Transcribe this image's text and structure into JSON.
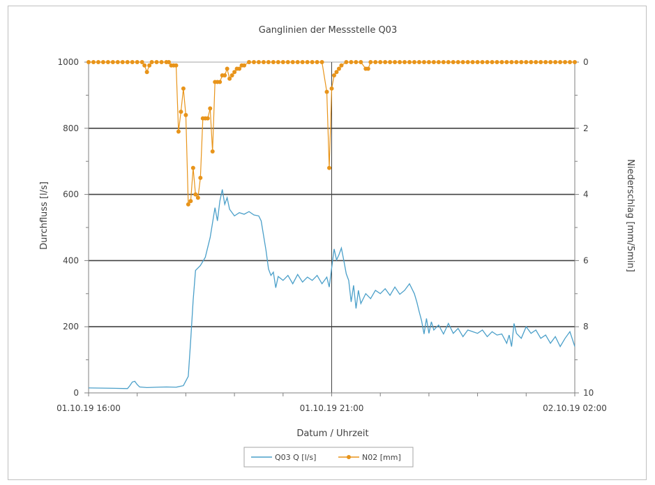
{
  "chart_data": {
    "type": "line",
    "title": "Ganglinien der Messstelle Q03",
    "xlabel": "Datum / Uhrzeit",
    "ylabel_left": "Durchfluss  [l/s]",
    "ylabel_right": "Niederschlag  [mm/5min]",
    "x_axis": {
      "type": "time",
      "range": [
        "01.10.19 16:00",
        "02.10.19 02:00"
      ],
      "tick_labels": [
        "01.10.19 16:00",
        "01.10.19 21:00",
        "02.10.19 02:00"
      ]
    },
    "y_left": {
      "range": [
        0,
        1000
      ],
      "ticks": [
        0,
        200,
        400,
        600,
        800,
        1000
      ]
    },
    "y_right": {
      "range": [
        0,
        10
      ],
      "inverted": true,
      "ticks": [
        0,
        2,
        4,
        6,
        8,
        10
      ]
    },
    "grid": "horizontal major lines at 200, 400, 600, 800, 1000 l/s",
    "vertical_marker_at": "01.10.19 21:00",
    "legend_position": "bottom",
    "series": [
      {
        "name": "Q03 Q [l/s]",
        "axis": "left",
        "color": "#4a9fc9",
        "x_unit": "hours since 01.10.19 16:00",
        "points": [
          [
            0.0,
            15
          ],
          [
            0.5,
            14
          ],
          [
            0.8,
            13
          ],
          [
            0.85,
            22
          ],
          [
            0.9,
            33
          ],
          [
            0.95,
            35
          ],
          [
            1.0,
            25
          ],
          [
            1.05,
            18
          ],
          [
            1.2,
            16
          ],
          [
            1.4,
            17
          ],
          [
            1.6,
            18
          ],
          [
            1.8,
            17
          ],
          [
            1.95,
            22
          ],
          [
            2.05,
            50
          ],
          [
            2.1,
            160
          ],
          [
            2.15,
            280
          ],
          [
            2.2,
            370
          ],
          [
            2.3,
            385
          ],
          [
            2.4,
            410
          ],
          [
            2.5,
            470
          ],
          [
            2.6,
            560
          ],
          [
            2.65,
            520
          ],
          [
            2.7,
            580
          ],
          [
            2.75,
            615
          ],
          [
            2.8,
            570
          ],
          [
            2.85,
            590
          ],
          [
            2.9,
            555
          ],
          [
            3.0,
            535
          ],
          [
            3.1,
            545
          ],
          [
            3.2,
            540
          ],
          [
            3.3,
            548
          ],
          [
            3.4,
            538
          ],
          [
            3.5,
            535
          ],
          [
            3.55,
            520
          ],
          [
            3.6,
            475
          ],
          [
            3.65,
            430
          ],
          [
            3.7,
            375
          ],
          [
            3.75,
            355
          ],
          [
            3.8,
            365
          ],
          [
            3.85,
            318
          ],
          [
            3.9,
            352
          ],
          [
            4.0,
            340
          ],
          [
            4.1,
            355
          ],
          [
            4.2,
            330
          ],
          [
            4.3,
            358
          ],
          [
            4.4,
            335
          ],
          [
            4.5,
            350
          ],
          [
            4.6,
            340
          ],
          [
            4.7,
            355
          ],
          [
            4.8,
            330
          ],
          [
            4.9,
            350
          ],
          [
            4.95,
            320
          ],
          [
            5.0,
            378
          ],
          [
            5.05,
            435
          ],
          [
            5.1,
            402
          ],
          [
            5.15,
            418
          ],
          [
            5.2,
            438
          ],
          [
            5.25,
            400
          ],
          [
            5.3,
            360
          ],
          [
            5.35,
            340
          ],
          [
            5.4,
            275
          ],
          [
            5.45,
            325
          ],
          [
            5.5,
            255
          ],
          [
            5.55,
            310
          ],
          [
            5.6,
            270
          ],
          [
            5.7,
            300
          ],
          [
            5.8,
            285
          ],
          [
            5.9,
            310
          ],
          [
            6.0,
            300
          ],
          [
            6.1,
            315
          ],
          [
            6.2,
            295
          ],
          [
            6.3,
            320
          ],
          [
            6.4,
            298
          ],
          [
            6.5,
            310
          ],
          [
            6.6,
            330
          ],
          [
            6.7,
            300
          ],
          [
            6.75,
            275
          ],
          [
            6.8,
            245
          ],
          [
            6.85,
            218
          ],
          [
            6.9,
            178
          ],
          [
            6.95,
            225
          ],
          [
            7.0,
            180
          ],
          [
            7.05,
            215
          ],
          [
            7.1,
            190
          ],
          [
            7.2,
            205
          ],
          [
            7.3,
            178
          ],
          [
            7.4,
            210
          ],
          [
            7.5,
            180
          ],
          [
            7.6,
            195
          ],
          [
            7.7,
            170
          ],
          [
            7.8,
            190
          ],
          [
            7.9,
            185
          ],
          [
            8.0,
            180
          ],
          [
            8.1,
            190
          ],
          [
            8.2,
            170
          ],
          [
            8.3,
            185
          ],
          [
            8.4,
            175
          ],
          [
            8.5,
            178
          ],
          [
            8.6,
            150
          ],
          [
            8.65,
            175
          ],
          [
            8.7,
            140
          ],
          [
            8.75,
            210
          ],
          [
            8.8,
            180
          ],
          [
            8.9,
            165
          ],
          [
            9.0,
            200
          ],
          [
            9.1,
            180
          ],
          [
            9.2,
            190
          ],
          [
            9.3,
            165
          ],
          [
            9.4,
            175
          ],
          [
            9.5,
            150
          ],
          [
            9.6,
            170
          ],
          [
            9.7,
            140
          ],
          [
            9.8,
            165
          ],
          [
            9.9,
            185
          ],
          [
            10.0,
            140
          ]
        ]
      },
      {
        "name": "N02 [mm]",
        "axis": "right",
        "color": "#e8941a",
        "x_unit": "hours since 01.10.19 16:00",
        "points": [
          [
            0.0,
            0
          ],
          [
            0.1,
            0
          ],
          [
            0.2,
            0
          ],
          [
            0.3,
            0
          ],
          [
            0.4,
            0
          ],
          [
            0.5,
            0
          ],
          [
            0.6,
            0
          ],
          [
            0.7,
            0
          ],
          [
            0.8,
            0
          ],
          [
            0.9,
            0
          ],
          [
            1.0,
            0
          ],
          [
            1.1,
            0
          ],
          [
            1.15,
            0.1
          ],
          [
            1.2,
            0.3
          ],
          [
            1.25,
            0.1
          ],
          [
            1.3,
            0
          ],
          [
            1.4,
            0
          ],
          [
            1.5,
            0
          ],
          [
            1.6,
            0
          ],
          [
            1.65,
            0
          ],
          [
            1.7,
            0.1
          ],
          [
            1.75,
            0.1
          ],
          [
            1.8,
            0.1
          ],
          [
            1.85,
            2.1
          ],
          [
            1.9,
            1.5
          ],
          [
            1.95,
            0.8
          ],
          [
            2.0,
            1.6
          ],
          [
            2.05,
            4.3
          ],
          [
            2.1,
            4.2
          ],
          [
            2.15,
            3.2
          ],
          [
            2.2,
            4.0
          ],
          [
            2.25,
            4.1
          ],
          [
            2.3,
            3.5
          ],
          [
            2.35,
            1.7
          ],
          [
            2.4,
            1.7
          ],
          [
            2.45,
            1.7
          ],
          [
            2.5,
            1.4
          ],
          [
            2.55,
            2.7
          ],
          [
            2.6,
            0.6
          ],
          [
            2.65,
            0.6
          ],
          [
            2.7,
            0.6
          ],
          [
            2.75,
            0.4
          ],
          [
            2.8,
            0.4
          ],
          [
            2.85,
            0.2
          ],
          [
            2.9,
            0.5
          ],
          [
            2.95,
            0.4
          ],
          [
            3.0,
            0.3
          ],
          [
            3.05,
            0.2
          ],
          [
            3.1,
            0.2
          ],
          [
            3.15,
            0.1
          ],
          [
            3.2,
            0.1
          ],
          [
            3.3,
            0
          ],
          [
            3.4,
            0
          ],
          [
            3.5,
            0
          ],
          [
            3.6,
            0
          ],
          [
            3.7,
            0
          ],
          [
            3.8,
            0
          ],
          [
            3.9,
            0
          ],
          [
            4.0,
            0
          ],
          [
            4.1,
            0
          ],
          [
            4.2,
            0
          ],
          [
            4.3,
            0
          ],
          [
            4.4,
            0
          ],
          [
            4.5,
            0
          ],
          [
            4.6,
            0
          ],
          [
            4.7,
            0
          ],
          [
            4.8,
            0
          ],
          [
            4.9,
            0.9
          ],
          [
            4.95,
            3.2
          ],
          [
            5.0,
            0.8
          ],
          [
            5.05,
            0.4
          ],
          [
            5.1,
            0.3
          ],
          [
            5.15,
            0.2
          ],
          [
            5.2,
            0.1
          ],
          [
            5.3,
            0
          ],
          [
            5.4,
            0
          ],
          [
            5.5,
            0
          ],
          [
            5.6,
            0
          ],
          [
            5.7,
            0.2
          ],
          [
            5.75,
            0.2
          ],
          [
            5.8,
            0
          ],
          [
            5.9,
            0
          ],
          [
            6.0,
            0
          ],
          [
            6.1,
            0
          ],
          [
            6.2,
            0
          ],
          [
            6.3,
            0
          ],
          [
            6.4,
            0
          ],
          [
            6.5,
            0
          ],
          [
            6.6,
            0
          ],
          [
            6.7,
            0
          ],
          [
            6.8,
            0
          ],
          [
            6.9,
            0
          ],
          [
            7.0,
            0
          ],
          [
            7.1,
            0
          ],
          [
            7.2,
            0
          ],
          [
            7.3,
            0
          ],
          [
            7.4,
            0
          ],
          [
            7.5,
            0
          ],
          [
            7.6,
            0
          ],
          [
            7.7,
            0
          ],
          [
            7.8,
            0
          ],
          [
            7.9,
            0
          ],
          [
            8.0,
            0
          ],
          [
            8.1,
            0
          ],
          [
            8.2,
            0
          ],
          [
            8.3,
            0
          ],
          [
            8.4,
            0
          ],
          [
            8.5,
            0
          ],
          [
            8.6,
            0
          ],
          [
            8.7,
            0
          ],
          [
            8.8,
            0
          ],
          [
            8.9,
            0
          ],
          [
            9.0,
            0
          ],
          [
            9.1,
            0
          ],
          [
            9.2,
            0
          ],
          [
            9.3,
            0
          ],
          [
            9.4,
            0
          ],
          [
            9.5,
            0
          ],
          [
            9.6,
            0
          ],
          [
            9.7,
            0
          ],
          [
            9.8,
            0
          ],
          [
            9.9,
            0
          ],
          [
            10.0,
            0
          ]
        ]
      }
    ]
  }
}
